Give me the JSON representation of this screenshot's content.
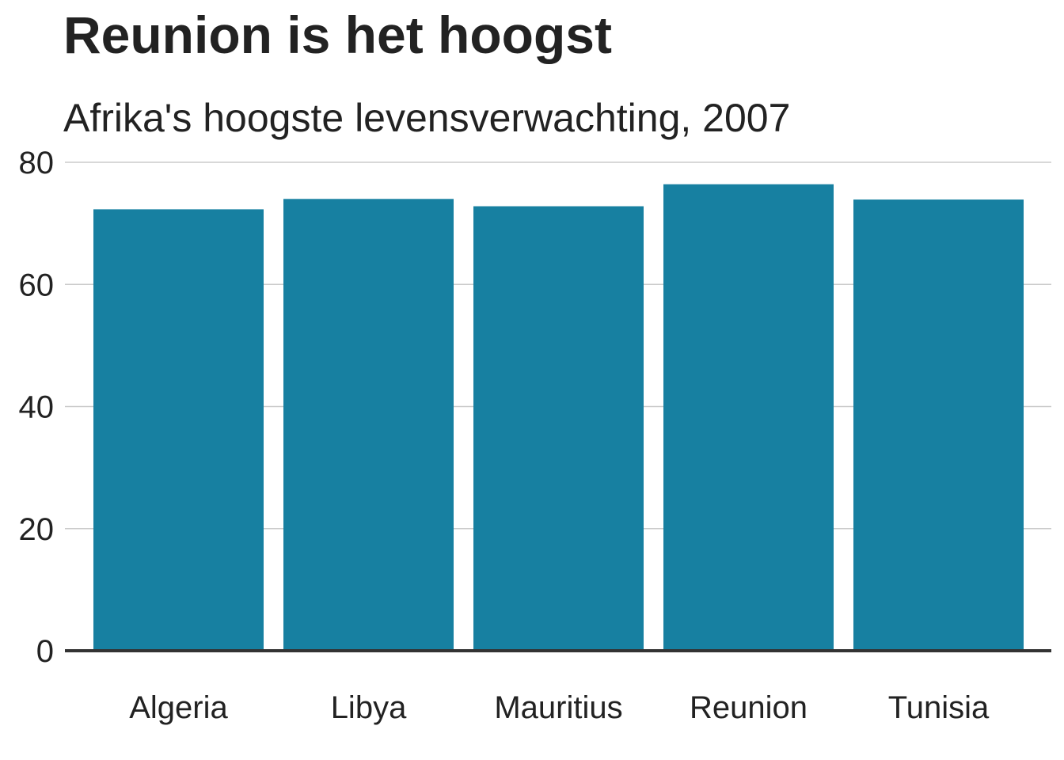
{
  "chart_data": {
    "type": "bar",
    "title": "Reunion is het hoogst",
    "subtitle": "Afrika's hoogste levensverwachting, 2007",
    "xlabel": "",
    "ylabel": "",
    "categories": [
      "Algeria",
      "Libya",
      "Mauritius",
      "Reunion",
      "Tunisia"
    ],
    "values": [
      72.3,
      74.0,
      72.8,
      76.4,
      73.9
    ],
    "ylim": [
      0,
      80
    ],
    "yticks": [
      0,
      20,
      40,
      60,
      80
    ],
    "ytick_labels": [
      "0",
      "20",
      "40",
      "60",
      "80"
    ],
    "grid": "horizontal",
    "legend": "none",
    "colors": {
      "bar": "#1780A1",
      "gridline": "#cbcbcb",
      "baseline": "#333333",
      "text": "#222222"
    }
  }
}
